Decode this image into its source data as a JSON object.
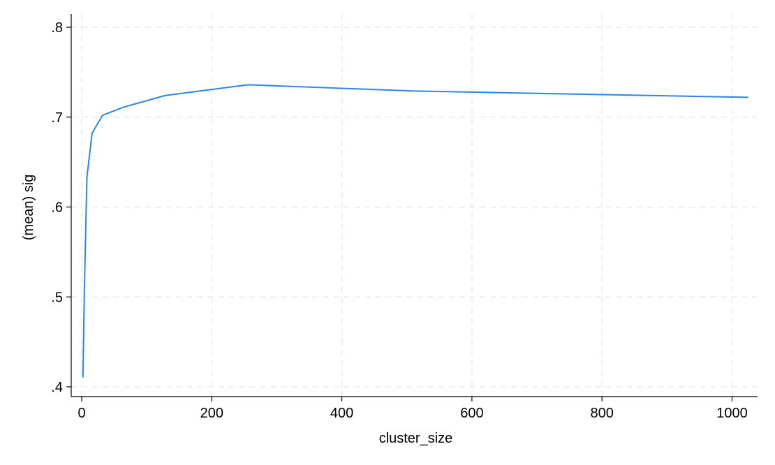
{
  "chart_data": {
    "type": "line",
    "xlabel": "cluster_size",
    "ylabel": "(mean) sig",
    "xlim": [
      0,
      1024
    ],
    "ylim": [
      0.4,
      0.8
    ],
    "x_ticks": [
      0,
      200,
      400,
      600,
      800,
      1000
    ],
    "x_tick_labels": [
      "0",
      "200",
      "400",
      "600",
      "800",
      "1000"
    ],
    "y_ticks": [
      0.4,
      0.5,
      0.6,
      0.7,
      0.8
    ],
    "y_tick_labels": [
      ".4",
      ".5",
      ".6",
      ".7",
      ".8"
    ],
    "grid": true,
    "series": [
      {
        "color": "#2a86e2",
        "x": [
          2,
          4,
          8,
          16,
          32,
          64,
          128,
          256,
          512,
          1024
        ],
        "y": [
          0.411,
          0.503,
          0.633,
          0.682,
          0.702,
          0.711,
          0.724,
          0.736,
          0.729,
          0.722
        ]
      }
    ]
  }
}
